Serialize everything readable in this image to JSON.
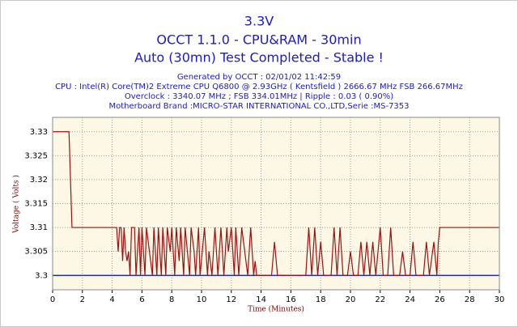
{
  "chart_data": {
    "type": "line",
    "title": "3.3V",
    "subtitle": "OCCT 1.1.0 - CPU&RAM - 30min",
    "status": "Auto (30mn) Test Completed - Stable !",
    "info": [
      "Generated by OCCT : 02/01/02 11:42:59",
      "CPU : Intel(R) Core(TM)2 Extreme CPU Q6800  @ 2.93GHz ( Kentsfield ) 2666.67 MHz FSB 266.67MHz",
      "Overclock : 3340.07 MHz ; FSB 334.01MHz | Ripple : 0.03 ( 0.90%)",
      "Motherboard Brand :MICRO-STAR INTERNATIONAL CO.,LTD,Serie :MS-7353"
    ],
    "y_label": "Voltage ( Volts )",
    "x_label": "Time (Minutes)",
    "xlim": [
      0,
      30
    ],
    "xticks": [
      0,
      2,
      4,
      6,
      8,
      10,
      12,
      14,
      16,
      18,
      20,
      22,
      24,
      26,
      28,
      30
    ],
    "ylim": [
      3.297,
      3.333
    ],
    "yticks": [
      3.3,
      3.305,
      3.31,
      3.315,
      3.32,
      3.325,
      3.33
    ],
    "grid": true,
    "background": "#fdf8e6",
    "min_line": 3.3,
    "min_line_color": "#0000ff",
    "series": [
      {
        "color": "#a01010",
        "x": [
          0,
          1.1,
          1.2,
          1.3,
          4.3,
          4.4,
          4.5,
          4.6,
          4.7,
          4.8,
          4.9,
          5.0,
          5.1,
          5.2,
          5.3,
          5.5,
          5.6,
          5.7,
          5.8,
          5.9,
          6.0,
          6.2,
          6.3,
          6.5,
          6.7,
          6.8,
          7.0,
          7.1,
          7.3,
          7.4,
          7.6,
          7.7,
          7.9,
          8.0,
          8.2,
          8.3,
          8.5,
          8.6,
          8.8,
          8.9,
          9.2,
          9.3,
          9.5,
          9.6,
          9.8,
          9.9,
          10.2,
          10.4,
          10.5,
          10.7,
          10.9,
          11.1,
          11.3,
          11.5,
          11.7,
          11.8,
          12.0,
          12.2,
          12.3,
          12.5,
          12.7,
          12.9,
          13.1,
          13.3,
          13.5,
          13.6,
          13.7,
          14.7,
          14.9,
          15.1,
          17.0,
          17.2,
          17.4,
          17.6,
          17.8,
          18.0,
          18.2,
          18.7,
          18.9,
          19.1,
          19.3,
          19.5,
          19.8,
          20.0,
          20.2,
          20.5,
          20.7,
          20.9,
          21.1,
          21.3,
          21.5,
          21.7,
          22.0,
          22.2,
          22.5,
          22.7,
          22.9,
          23.3,
          23.5,
          23.7,
          24.0,
          24.2,
          24.4,
          24.9,
          25.1,
          25.3,
          25.6,
          25.8,
          25.9,
          26.0,
          30
        ],
        "values": [
          3.33,
          3.33,
          3.32,
          3.31,
          3.31,
          3.305,
          3.31,
          3.31,
          3.303,
          3.31,
          3.305,
          3.303,
          3.305,
          3.3,
          3.31,
          3.31,
          3.3,
          3.305,
          3.31,
          3.3,
          3.31,
          3.3,
          3.31,
          3.305,
          3.3,
          3.31,
          3.3,
          3.31,
          3.3,
          3.31,
          3.3,
          3.31,
          3.305,
          3.31,
          3.3,
          3.31,
          3.303,
          3.31,
          3.3,
          3.31,
          3.3,
          3.31,
          3.305,
          3.3,
          3.31,
          3.3,
          3.31,
          3.3,
          3.305,
          3.3,
          3.31,
          3.3,
          3.31,
          3.3,
          3.31,
          3.305,
          3.31,
          3.3,
          3.31,
          3.3,
          3.31,
          3.305,
          3.3,
          3.31,
          3.3,
          3.303,
          3.3,
          3.3,
          3.307,
          3.3,
          3.3,
          3.31,
          3.3,
          3.31,
          3.3,
          3.307,
          3.3,
          3.3,
          3.31,
          3.3,
          3.31,
          3.3,
          3.3,
          3.305,
          3.3,
          3.3,
          3.307,
          3.3,
          3.307,
          3.3,
          3.307,
          3.3,
          3.31,
          3.3,
          3.3,
          3.31,
          3.3,
          3.3,
          3.305,
          3.3,
          3.3,
          3.307,
          3.3,
          3.3,
          3.307,
          3.3,
          3.307,
          3.3,
          3.307,
          3.31,
          3.31
        ]
      }
    ]
  }
}
